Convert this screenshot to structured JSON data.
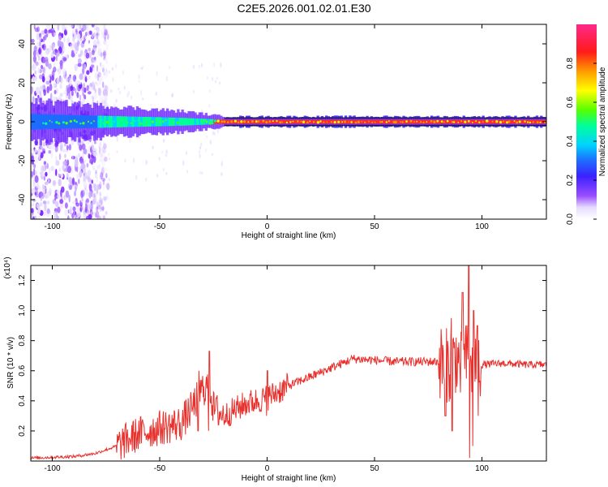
{
  "title": "C2E5.2026.001.02.01.E30",
  "colors": {
    "line": "#e8302c",
    "axis": "#000000",
    "band_edge": "#111111"
  },
  "chart_data": [
    {
      "type": "heatmap",
      "xlabel": "Height of straight line (km)",
      "ylabel": "Frequency (Hz)",
      "xlim": [
        -110,
        130
      ],
      "ylim": [
        -50,
        50
      ],
      "x_ticks": [
        -100,
        -50,
        0,
        50,
        100
      ],
      "y_ticks": [
        -40,
        -20,
        0,
        20,
        40
      ],
      "colorbar": {
        "label": "Normalized spectral amplitude",
        "ticks": [
          "0.0",
          "0.2",
          "0.4",
          "0.6",
          "0.8"
        ],
        "range": [
          0,
          1
        ],
        "colormap": "rainbow (purple-blue-cyan-green-yellow-red-magenta)"
      },
      "description_points": {
        "scattered_noise_x_range": [
          -110,
          -80
        ],
        "band_center_hz": 0,
        "band_half_width_hz": [
          [
            -110,
            8
          ],
          [
            -40,
            4
          ],
          [
            -20,
            2
          ],
          [
            130,
            2
          ]
        ]
      }
    },
    {
      "type": "line",
      "xlabel": "Height of straight line (km)",
      "ylabel": "SNR (10 * v/v)",
      "y_multiplier": "(x10⁴)",
      "xlim": [
        -110,
        130
      ],
      "ylim": [
        0,
        1.3
      ],
      "x_ticks": [
        -100,
        -50,
        0,
        50,
        100
      ],
      "y_ticks": [
        "0.2",
        "0.4",
        "0.6",
        "0.8",
        "1.0",
        "1.2"
      ],
      "envelope_x": [
        -110,
        -90,
        -80,
        -70,
        -60,
        -50,
        -40,
        -35,
        -30,
        -27,
        -25,
        -20,
        -10,
        0,
        10,
        20,
        30,
        40,
        50,
        60,
        70,
        80,
        85,
        88,
        90,
        93,
        95,
        98,
        100,
        110,
        120,
        130
      ],
      "envelope_y": [
        0.02,
        0.03,
        0.05,
        0.1,
        0.18,
        0.22,
        0.25,
        0.35,
        0.48,
        0.5,
        0.35,
        0.3,
        0.38,
        0.42,
        0.5,
        0.56,
        0.62,
        0.68,
        0.67,
        0.66,
        0.66,
        0.66,
        0.63,
        0.7,
        0.62,
        0.68,
        0.62,
        0.66,
        0.64,
        0.65,
        0.64,
        0.64
      ],
      "spikes": [
        {
          "x": -27,
          "y_max": 0.73,
          "y_min": 0.2
        },
        {
          "x": -32,
          "y_max": 0.6,
          "y_min": 0.2
        },
        {
          "x": 0,
          "y_max": 0.6,
          "y_min": 0.3
        },
        {
          "x": 83,
          "y_max": 0.85,
          "y_min": 0.3
        },
        {
          "x": 86,
          "y_max": 0.95,
          "y_min": 0.2
        },
        {
          "x": 91,
          "y_max": 1.12,
          "y_min": 0.1
        },
        {
          "x": 94,
          "y_max": 1.3,
          "y_min": 0.02
        },
        {
          "x": 96,
          "y_max": 1.0,
          "y_min": 0.1
        },
        {
          "x": 98,
          "y_max": 0.9,
          "y_min": 0.3
        }
      ]
    }
  ]
}
